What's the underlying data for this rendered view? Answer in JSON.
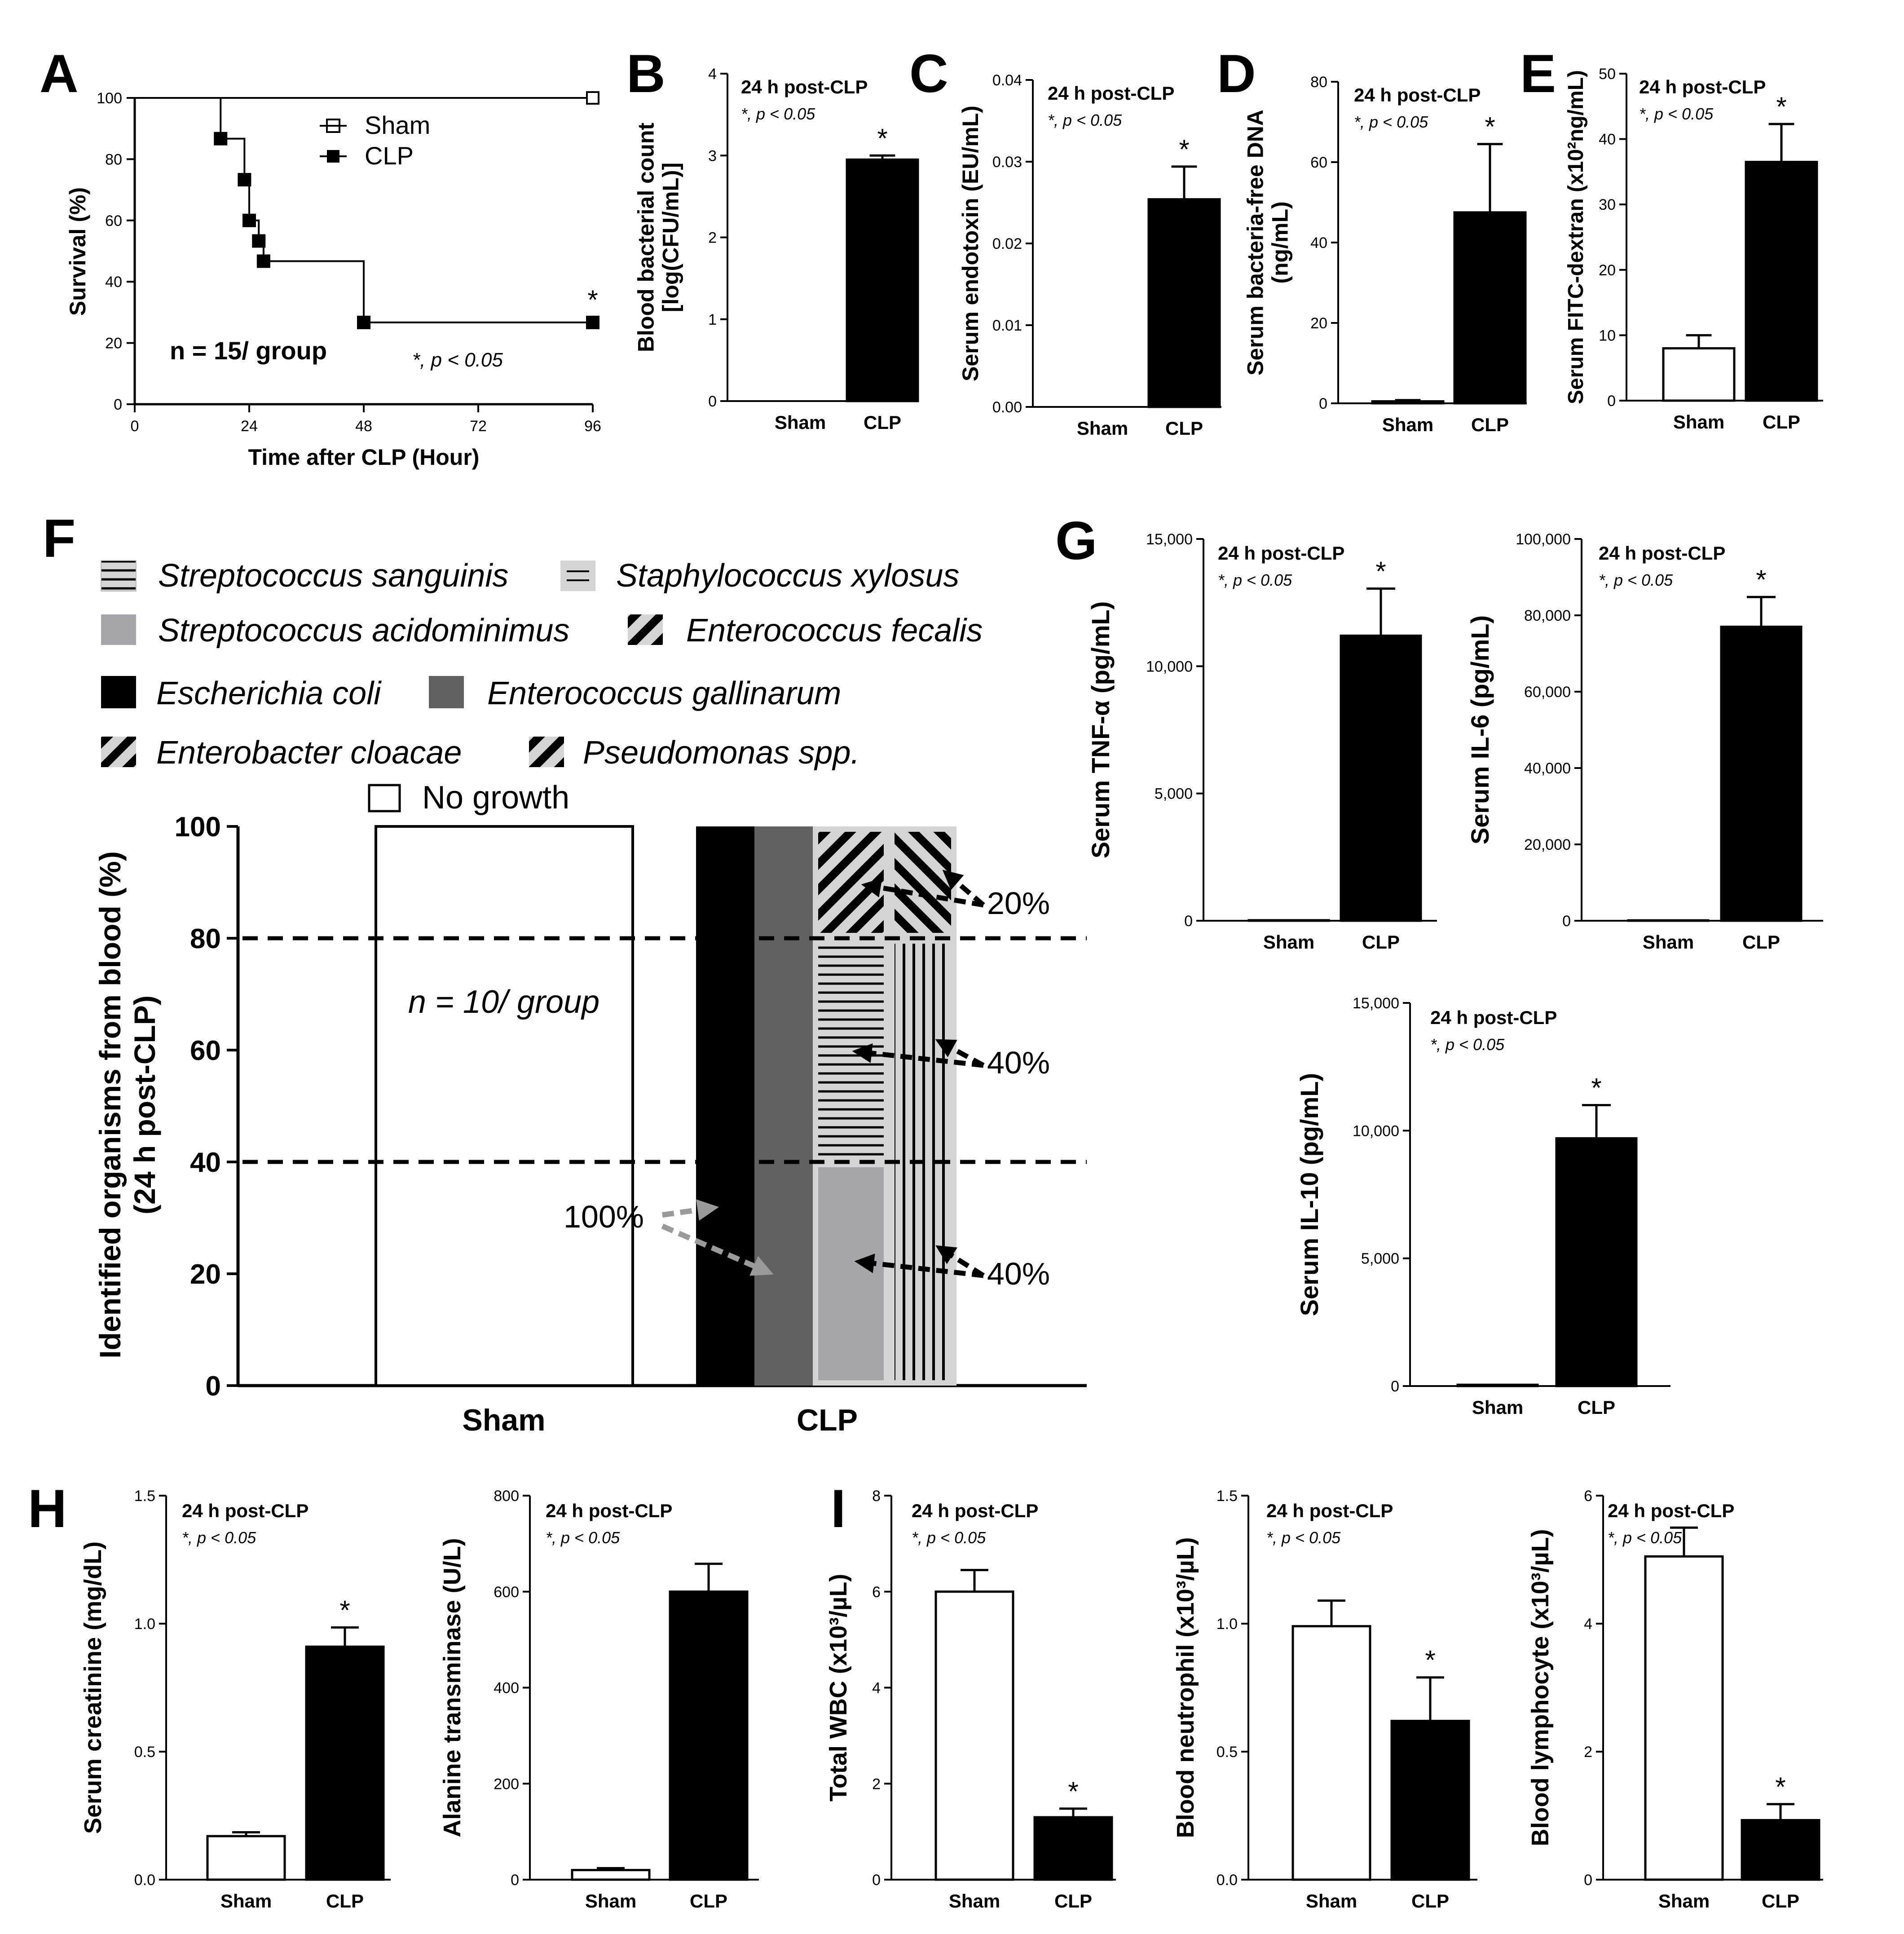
{
  "chart_data": [
    {
      "panel": "A",
      "type": "line",
      "title": "",
      "xlabel": "Time after CLP (Hour)",
      "ylabel": "Survival (%)",
      "xlim": [
        0,
        96
      ],
      "ylim": [
        0,
        100
      ],
      "xticks": [
        0,
        24,
        48,
        72,
        96
      ],
      "yticks": [
        0,
        20,
        40,
        60,
        80,
        100
      ],
      "series": [
        {
          "name": "Sham",
          "points": [
            [
              0,
              100
            ],
            [
              96,
              100
            ]
          ],
          "markers": [
            [
              96,
              100
            ]
          ]
        },
        {
          "name": "CLP",
          "points": [
            [
              0,
              100
            ],
            [
              18,
              100
            ],
            [
              18,
              86.7
            ],
            [
              23,
              86.7
            ],
            [
              23,
              73.3
            ],
            [
              24,
              73.3
            ],
            [
              24,
              60
            ],
            [
              26,
              60
            ],
            [
              26,
              53.3
            ],
            [
              27,
              53.3
            ],
            [
              27,
              46.7
            ],
            [
              48,
              46.7
            ],
            [
              48,
              26.7
            ],
            [
              96,
              26.7
            ]
          ],
          "markers": [
            [
              18,
              86.7
            ],
            [
              23,
              73.3
            ],
            [
              24,
              60
            ],
            [
              26,
              53.3
            ],
            [
              27,
              46.7
            ],
            [
              48,
              26.7
            ],
            [
              96,
              26.7
            ]
          ]
        }
      ],
      "annotations": [
        "n = 15/ group",
        "*, p < 0.05",
        "*"
      ]
    },
    {
      "panel": "B",
      "type": "bar",
      "title": "24 h post-CLP",
      "note": "*, p < 0.05",
      "ylabel_lines": [
        "Blood bacterial count",
        "[log(CFU/mL)]"
      ],
      "categories": [
        "Sham",
        "CLP"
      ],
      "values": [
        0,
        2.95
      ],
      "errors": [
        0,
        0.05
      ],
      "ylim": [
        0,
        4
      ],
      "yticks": [
        0,
        1,
        2,
        3,
        4
      ],
      "yticklabels": [
        "0",
        "1",
        "2",
        "3",
        "4"
      ],
      "significant": [
        false,
        true
      ]
    },
    {
      "panel": "C",
      "type": "bar",
      "title": "24 h post-CLP",
      "note": "*, p < 0.05",
      "ylabel_lines": [
        "Serum endotoxin (EU/mL)"
      ],
      "categories": [
        "Sham",
        "CLP"
      ],
      "values": [
        0,
        0.0254
      ],
      "errors": [
        0,
        0.004
      ],
      "ylim": [
        0,
        0.04
      ],
      "yticks": [
        0,
        0.01,
        0.02,
        0.03,
        0.04
      ],
      "yticklabels": [
        "0.00",
        "0.01",
        "0.02",
        "0.03",
        "0.04"
      ],
      "significant": [
        false,
        true
      ]
    },
    {
      "panel": "D",
      "type": "bar",
      "title": "24 h post-CLP",
      "note": "*, p < 0.05",
      "ylabel_lines": [
        "Serum bacteria-free DNA",
        "(ng/mL)"
      ],
      "categories": [
        "Sham",
        "CLP"
      ],
      "values": [
        0.5,
        47.5
      ],
      "errors": [
        0.3,
        17
      ],
      "ylim": [
        0,
        80
      ],
      "yticks": [
        0,
        20,
        40,
        60,
        80
      ],
      "yticklabels": [
        "0",
        "20",
        "40",
        "60",
        "80"
      ],
      "significant": [
        false,
        true
      ]
    },
    {
      "panel": "E",
      "type": "bar",
      "title": "24 h post-CLP",
      "note": "*, p < 0.05",
      "ylabel_lines": [
        "Serum FITC-dextran (x10²ng/mL)"
      ],
      "categories": [
        "Sham",
        "CLP"
      ],
      "values": [
        8,
        36.5
      ],
      "errors": [
        2,
        5.8
      ],
      "ylim": [
        0,
        50
      ],
      "yticks": [
        0,
        10,
        20,
        30,
        40,
        50
      ],
      "yticklabels": [
        "0",
        "10",
        "20",
        "30",
        "40",
        "50"
      ],
      "significant": [
        false,
        true
      ]
    },
    {
      "panel": "F",
      "type": "stacked-bar",
      "ylabel_lines": [
        "Identified organisms from blood (%)",
        "(24 h post-CLP)"
      ],
      "categories": [
        "Sham",
        "CLP"
      ],
      "ylim": [
        0,
        100
      ],
      "yticks": [
        0,
        20,
        40,
        60,
        80,
        100
      ],
      "legend": [
        {
          "label": "Streptococcus sanguinis",
          "pattern": "horizontal-lines"
        },
        {
          "label": "Staphylococcus xylosus",
          "pattern": "horizontal-lines-light"
        },
        {
          "label": "Streptococcus acidominimus",
          "pattern": "gray"
        },
        {
          "label": "Enterococcus fecalis",
          "pattern": "diagonal"
        },
        {
          "label": "Escherichia coli",
          "pattern": "black"
        },
        {
          "label": "Enterococcus gallinarum",
          "pattern": "dark-gray"
        },
        {
          "label": "Enterobacter cloacae",
          "pattern": "diagonal"
        },
        {
          "label": "Pseudomonas spp.",
          "pattern": "diagonal"
        },
        {
          "label": "No growth",
          "pattern": "white"
        }
      ],
      "sham": [
        {
          "organism": "No growth",
          "value": 100
        }
      ],
      "clp_columns": [
        {
          "segments": [
            {
              "organism": "Escherichia coli",
              "from": 0,
              "to": 100
            }
          ]
        },
        {
          "segments": [
            {
              "organism": "Enterococcus gallinarum",
              "from": 0,
              "to": 100
            }
          ]
        },
        {
          "segments": [
            {
              "organism": "Streptococcus acidominimus",
              "from": 0,
              "to": 40
            },
            {
              "organism": "Streptococcus sanguinis",
              "from": 40,
              "to": 80
            },
            {
              "organism": "Enterococcus fecalis",
              "from": 80,
              "to": 100
            }
          ]
        },
        {
          "segments": [
            {
              "organism": "Staphylococcus xylosus",
              "from": 0,
              "to": 80
            },
            {
              "organism": "Pseudomonas spp.",
              "from": 80,
              "to": 100
            }
          ]
        }
      ],
      "reference_lines": [
        40,
        80
      ],
      "annotations": [
        "n = 10/ group",
        "100%",
        "20%",
        "40%",
        "40%"
      ]
    },
    {
      "panel": "G1",
      "type": "bar",
      "title": "24 h post-CLP",
      "note": "*, p < 0.05",
      "ylabel_lines": [
        "Serum TNF-α (pg/mL)"
      ],
      "categories": [
        "Sham",
        "CLP"
      ],
      "values": [
        20,
        11200
      ],
      "errors": [
        0,
        1850
      ],
      "ylim": [
        0,
        15000
      ],
      "yticks": [
        0,
        5000,
        10000,
        15000
      ],
      "yticklabels": [
        "0",
        "5,000",
        "10,000",
        "15,000"
      ],
      "significant": [
        false,
        true
      ]
    },
    {
      "panel": "G2",
      "type": "bar",
      "title": "24 h post-CLP",
      "note": "*, p < 0.05",
      "ylabel_lines": [
        "Serum IL-6 (pg/mL)"
      ],
      "categories": [
        "Sham",
        "CLP"
      ],
      "values": [
        100,
        77000
      ],
      "errors": [
        0,
        7800
      ],
      "ylim": [
        0,
        100000
      ],
      "yticks": [
        0,
        20000,
        40000,
        60000,
        80000,
        100000
      ],
      "yticklabels": [
        "0",
        "20,000",
        "40,000",
        "60,000",
        "80,000",
        "100,000"
      ],
      "significant": [
        false,
        true
      ]
    },
    {
      "panel": "G3",
      "type": "bar",
      "title": "24 h post-CLP",
      "note": "*, p < 0.05",
      "ylabel_lines": [
        "Serum IL-10 (pg/mL)"
      ],
      "categories": [
        "Sham",
        "CLP"
      ],
      "values": [
        50,
        9700
      ],
      "errors": [
        0,
        1300
      ],
      "ylim": [
        0,
        15000
      ],
      "yticks": [
        0,
        5000,
        10000,
        15000
      ],
      "yticklabels": [
        "0",
        "5,000",
        "10,000",
        "15,000"
      ],
      "significant": [
        false,
        true
      ]
    },
    {
      "panel": "H1",
      "type": "bar",
      "title": "24 h post-CLP",
      "note": "*, p < 0.05",
      "ylabel_lines": [
        "Serum creatinine (mg/dL)"
      ],
      "categories": [
        "Sham",
        "CLP"
      ],
      "values": [
        0.17,
        0.91
      ],
      "errors": [
        0.015,
        0.075
      ],
      "ylim": [
        0,
        1.5
      ],
      "yticks": [
        0,
        0.5,
        1.0,
        1.5
      ],
      "yticklabels": [
        "0.0",
        "0.5",
        "1.0",
        "1.5"
      ],
      "significant": [
        false,
        true
      ]
    },
    {
      "panel": "H2",
      "type": "bar",
      "title": "24 h post-CLP",
      "note": "*, p < 0.05",
      "ylabel_lines": [
        "Alanine transminase (U/L)"
      ],
      "categories": [
        "Sham",
        "CLP"
      ],
      "values": [
        20,
        600
      ],
      "errors": [
        4,
        58
      ],
      "ylim": [
        0,
        800
      ],
      "yticks": [
        0,
        200,
        400,
        600,
        800
      ],
      "yticklabels": [
        "0",
        "200",
        "400",
        "600",
        "800"
      ],
      "significant": [
        false,
        false
      ]
    },
    {
      "panel": "I1",
      "type": "bar",
      "title": "24 h post-CLP",
      "note": "*, p < 0.05",
      "ylabel_lines": [
        "Total WBC (x10³/µL)"
      ],
      "categories": [
        "Sham",
        "CLP"
      ],
      "values": [
        6.0,
        1.3
      ],
      "errors": [
        0.45,
        0.18
      ],
      "ylim": [
        0,
        8
      ],
      "yticks": [
        0,
        2,
        4,
        6,
        8
      ],
      "yticklabels": [
        "0",
        "2",
        "4",
        "6",
        "8"
      ],
      "significant": [
        false,
        true
      ]
    },
    {
      "panel": "I2",
      "type": "bar",
      "title": "24 h post-CLP",
      "note": "*, p < 0.05",
      "ylabel_lines": [
        "Blood neutrophil (x10³/µL)"
      ],
      "categories": [
        "Sham",
        "CLP"
      ],
      "values": [
        0.99,
        0.62
      ],
      "errors": [
        0.1,
        0.17
      ],
      "ylim": [
        0,
        1.5
      ],
      "yticks": [
        0,
        0.5,
        1.0,
        1.5
      ],
      "yticklabels": [
        "0.0",
        "0.5",
        "1.0",
        "1.5"
      ],
      "significant": [
        false,
        true
      ]
    },
    {
      "panel": "I3",
      "type": "bar",
      "title": "24 h post-CLP",
      "note": "*, p < 0.05",
      "ylabel_lines": [
        "Blood lymphocyte (x10³/µL)"
      ],
      "categories": [
        "Sham",
        "CLP"
      ],
      "values": [
        5.05,
        0.93
      ],
      "errors": [
        0.45,
        0.25
      ],
      "ylim": [
        0,
        6
      ],
      "yticks": [
        0,
        2,
        4,
        6
      ],
      "yticklabels": [
        "0",
        "2",
        "4",
        "6"
      ],
      "significant": [
        false,
        true
      ]
    }
  ]
}
